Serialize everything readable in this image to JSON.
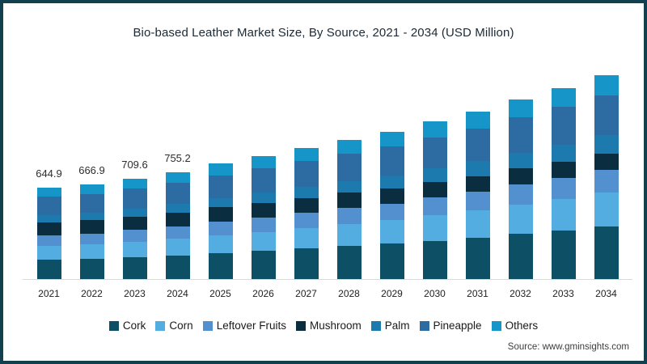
{
  "frame": {
    "border_color": "#12404f",
    "background": "#ffffff",
    "axis_color": "#d9d9d9"
  },
  "title": "Bio-based Leather Market Size, By Source, 2021 - 2034 (USD Million)",
  "source": "Source: www.gminsights.com",
  "chart_data": {
    "type": "bar",
    "stacked": true,
    "title": "Bio-based Leather Market Size, By Source, 2021 - 2034 (USD Million)",
    "unit": "USD Million",
    "y_axis_visible": false,
    "grid": false,
    "legend_position": "bottom",
    "categories": [
      "2021",
      "2022",
      "2023",
      "2024",
      "2025",
      "2026",
      "2027",
      "2028",
      "2029",
      "2030",
      "2031",
      "2032",
      "2033",
      "2034"
    ],
    "bar_labels": [
      "644.9",
      "666.9",
      "709.6",
      "755.2",
      "",
      "",
      "",
      "",
      "",
      "",
      "",
      "",
      "",
      ""
    ],
    "totals": [
      644.9,
      666.9,
      709.6,
      755.2,
      815.0,
      868.0,
      925.0,
      985.0,
      1040.0,
      1112.0,
      1182.0,
      1270.0,
      1350.0,
      1440.0
    ],
    "totals_note": "totals after 2024 estimated from bar heights; only first four bars carry printed labels",
    "series": [
      {
        "name": "Cork",
        "color": "#0d5066",
        "values": [
          135.4,
          142.5,
          154.3,
          167.0,
          183.2,
          198.3,
          214.8,
          232.3,
          249.1,
          270.4,
          291.8,
          318.3,
          343.3,
          371.5
        ]
      },
      {
        "name": "Corn",
        "color": "#54ade0",
        "values": [
          96.7,
          100.8,
          108.2,
          116.1,
          126.3,
          135.6,
          145.6,
          156.2,
          166.2,
          179.1,
          191.8,
          207.7,
          222.5,
          239.0
        ]
      },
      {
        "name": "Leftover Fruits",
        "color": "#5290cf",
        "values": [
          77.4,
          79.6,
          84.2,
          89.1,
          95.5,
          101.1,
          107.1,
          113.5,
          119.1,
          126.5,
          133.7,
          142.7,
          150.8,
          159.8
        ]
      },
      {
        "name": "Mushroom",
        "color": "#0a2e40",
        "values": [
          93.5,
          93.3,
          95.7,
          98.0,
          101.6,
          103.8,
          105.9,
          107.9,
          108.6,
          110.4,
          111.4,
          113.3,
          113.5,
          113.8
        ]
      },
      {
        "name": "Palm",
        "color": "#1d7aae",
        "values": [
          48.4,
          50.8,
          55.0,
          59.4,
          65.1,
          70.5,
          76.2,
          82.3,
          88.2,
          95.7,
          103.2,
          112.4,
          121.2,
          131.0
        ]
      },
      {
        "name": "Pineapple",
        "color": "#2d6ba3",
        "values": [
          129.0,
          133.2,
          141.5,
          150.3,
          162.0,
          172.3,
          183.3,
          194.8,
          205.4,
          219.3,
          232.7,
          249.7,
          265.0,
          282.2
        ]
      },
      {
        "name": "Others",
        "color": "#1695c9",
        "values": [
          64.5,
          66.7,
          70.7,
          75.3,
          81.3,
          86.4,
          92.1,
          98.0,
          103.4,
          110.6,
          117.4,
          125.9,
          133.7,
          142.6
        ]
      }
    ]
  }
}
